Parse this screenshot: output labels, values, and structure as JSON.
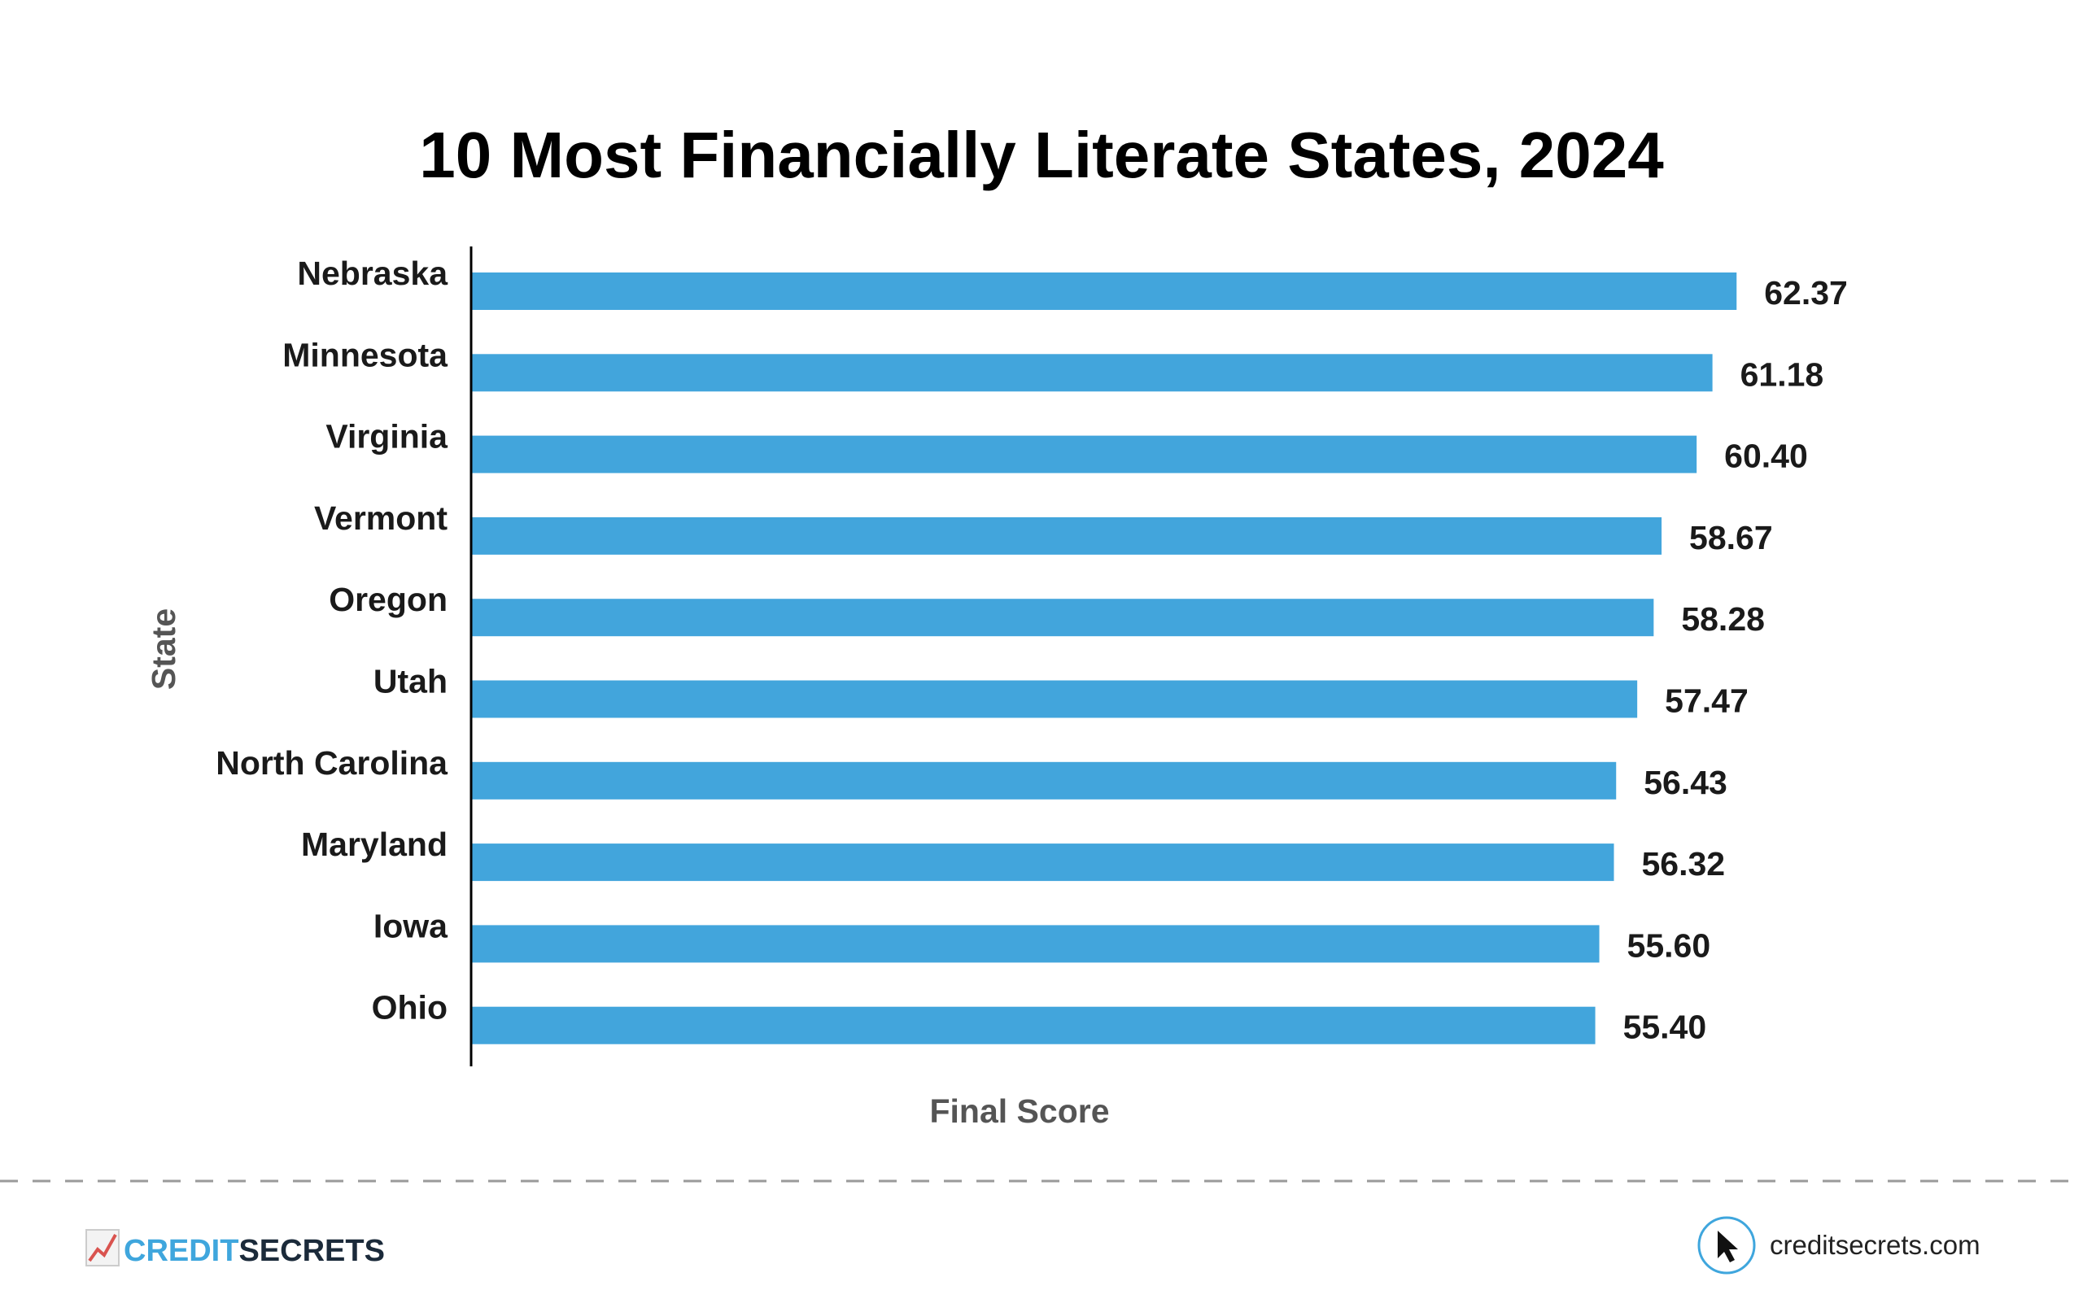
{
  "chart_data": {
    "type": "bar",
    "orientation": "horizontal",
    "title": "10 Most Financially Literate States, 2024",
    "xlabel": "Final Score",
    "ylabel": "State",
    "categories": [
      "Nebraska",
      "Minnesota",
      "Virginia",
      "Vermont",
      "Oregon",
      "Utah",
      "North Carolina",
      "Maryland",
      "Iowa",
      "Ohio"
    ],
    "values": [
      62.37,
      61.18,
      60.4,
      58.67,
      58.28,
      57.47,
      56.43,
      56.32,
      55.6,
      55.4
    ],
    "value_labels": [
      "62.37",
      "61.18",
      "60.40",
      "58.67",
      "58.28",
      "57.47",
      "56.43",
      "56.32",
      "55.60",
      "55.40"
    ],
    "xlim": [
      0,
      64
    ],
    "grid": false,
    "bar_color": "#42a5dc"
  },
  "footer": {
    "brand_part1": "CREDIT",
    "brand_part2": "SECRETS",
    "website": "creditsecrets.com",
    "logo_icon": "rising-chart-icon",
    "site_icon": "cursor-arrow-icon",
    "brand_color": "#3fa6dd",
    "logo_accent": "#d9534f"
  }
}
